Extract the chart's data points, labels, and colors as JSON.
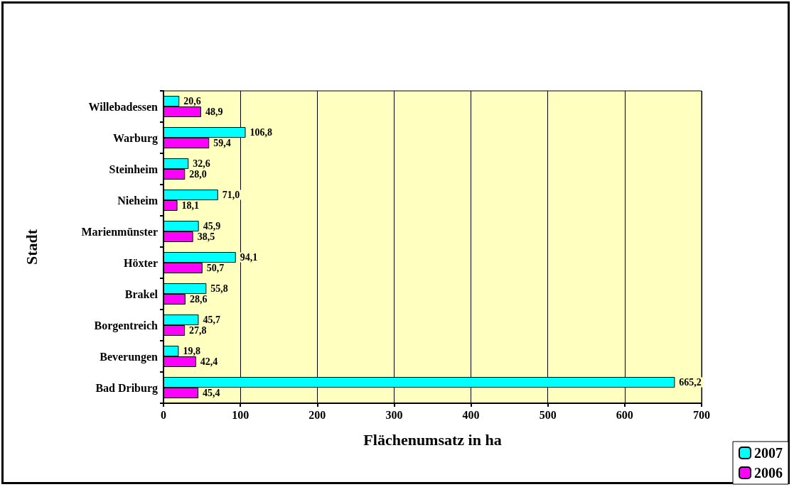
{
  "chart_data": {
    "type": "bar",
    "orientation": "horizontal",
    "xlabel": "Flächenumsatz in ha",
    "ylabel": "Stadt",
    "categories": [
      "Willebadessen",
      "Warburg",
      "Steinheim",
      "Nieheim",
      "Marienmünster",
      "Höxter",
      "Brakel",
      "Borgentreich",
      "Beverungen",
      "Bad Driburg"
    ],
    "series": [
      {
        "name": "2007",
        "color": "#00ffff",
        "values": [
          20.6,
          106.8,
          32.6,
          71.0,
          45.9,
          94.1,
          55.8,
          45.7,
          19.8,
          665.2
        ],
        "value_labels": [
          "20,6",
          "106,8",
          "32,6",
          "71,0",
          "45,9",
          "94,1",
          "55,8",
          "45,7",
          "19,8",
          "665,2"
        ]
      },
      {
        "name": "2006",
        "color": "#ff00ff",
        "values": [
          48.9,
          59.4,
          28.0,
          18.1,
          38.5,
          50.7,
          28.6,
          27.8,
          42.4,
          45.4
        ],
        "value_labels": [
          "48,9",
          "59,4",
          "28,0",
          "18,1",
          "38,5",
          "50,7",
          "28,6",
          "27,8",
          "42,4",
          "45,4"
        ]
      }
    ],
    "xlim": [
      0,
      700
    ],
    "xticks": [
      0,
      100,
      200,
      300,
      400,
      500,
      600,
      700
    ],
    "grid": "x",
    "legend": "bottom right"
  }
}
